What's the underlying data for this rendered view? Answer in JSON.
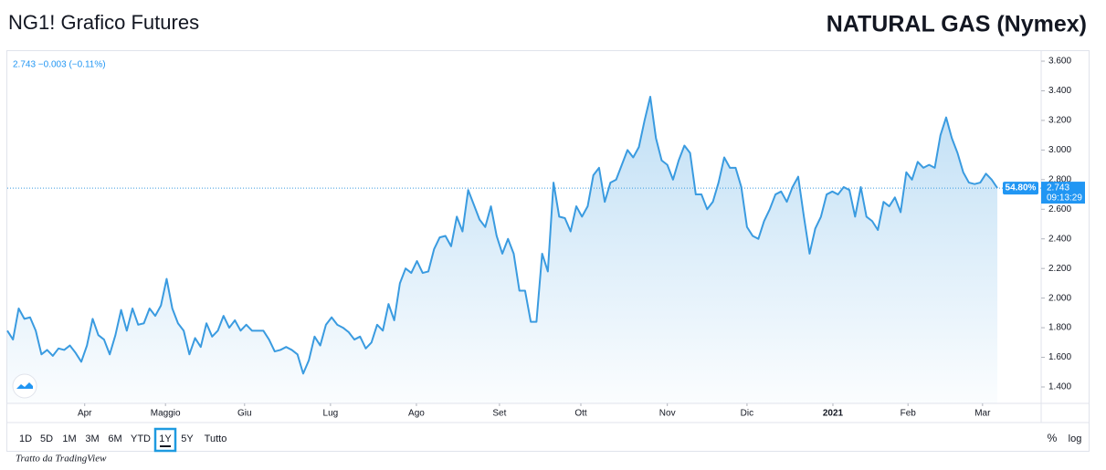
{
  "chart_data": {
    "type": "area",
    "title": "NG1! Grafico Futures",
    "subtitle": "NATURAL GAS (Nymex)",
    "legend_text": "2.743 −0.003 (−0.11%)",
    "color": "#3a9be0",
    "values": [
      1.78,
      1.72,
      1.93,
      1.86,
      1.87,
      1.78,
      1.62,
      1.65,
      1.61,
      1.66,
      1.65,
      1.68,
      1.63,
      1.57,
      1.68,
      1.86,
      1.75,
      1.72,
      1.62,
      1.75,
      1.92,
      1.78,
      1.93,
      1.82,
      1.83,
      1.93,
      1.88,
      1.95,
      2.13,
      1.93,
      1.83,
      1.78,
      1.62,
      1.73,
      1.67,
      1.83,
      1.74,
      1.78,
      1.88,
      1.8,
      1.85,
      1.78,
      1.82,
      1.78,
      1.78,
      1.78,
      1.72,
      1.64,
      1.65,
      1.67,
      1.65,
      1.62,
      1.49,
      1.58,
      1.74,
      1.68,
      1.82,
      1.87,
      1.82,
      1.8,
      1.77,
      1.72,
      1.74,
      1.66,
      1.7,
      1.82,
      1.78,
      1.96,
      1.85,
      2.1,
      2.2,
      2.17,
      2.25,
      2.17,
      2.18,
      2.33,
      2.41,
      2.42,
      2.35,
      2.55,
      2.45,
      2.73,
      2.63,
      2.53,
      2.48,
      2.62,
      2.42,
      2.3,
      2.4,
      2.3,
      2.05,
      2.05,
      1.84,
      1.84,
      2.3,
      2.18,
      2.78,
      2.55,
      2.54,
      2.45,
      2.62,
      2.55,
      2.62,
      2.83,
      2.88,
      2.65,
      2.78,
      2.8,
      2.9,
      3.0,
      2.95,
      3.02,
      3.2,
      3.36,
      3.08,
      2.93,
      2.9,
      2.8,
      2.93,
      3.03,
      2.98,
      2.7,
      2.7,
      2.6,
      2.65,
      2.78,
      2.95,
      2.88,
      2.88,
      2.75,
      2.48,
      2.42,
      2.4,
      2.52,
      2.6,
      2.7,
      2.72,
      2.65,
      2.75,
      2.82,
      2.55,
      2.3,
      2.47,
      2.55,
      2.7,
      2.72,
      2.7,
      2.75,
      2.73,
      2.55,
      2.75,
      2.55,
      2.52,
      2.46,
      2.65,
      2.62,
      2.68,
      2.58,
      2.85,
      2.8,
      2.92,
      2.88,
      2.9,
      2.88,
      3.1,
      3.22,
      3.08,
      2.98,
      2.85,
      2.78,
      2.77,
      2.78,
      2.84,
      2.8,
      2.743
    ],
    "xlim": [
      0,
      181.7
    ],
    "xticks": [
      {
        "value": 13.6,
        "label": "Apr"
      },
      {
        "value": 27.8,
        "label": "Maggio"
      },
      {
        "value": 41.7,
        "label": "Giu"
      },
      {
        "value": 56.8,
        "label": "Lug"
      },
      {
        "value": 71.9,
        "label": "Ago"
      },
      {
        "value": 86.5,
        "label": "Set"
      },
      {
        "value": 100.8,
        "label": "Ott"
      },
      {
        "value": 116.0,
        "label": "Nov"
      },
      {
        "value": 130.0,
        "label": "Dic"
      },
      {
        "value": 145.1,
        "label": "2021"
      },
      {
        "value": 158.3,
        "label": "Feb"
      },
      {
        "value": 171.4,
        "label": "Mar"
      }
    ],
    "ylim": [
      1.289,
      3.668
    ],
    "yticks": [
      {
        "value": 1.4,
        "label": "1.400"
      },
      {
        "value": 1.6,
        "label": "1.600"
      },
      {
        "value": 1.8,
        "label": "1.800"
      },
      {
        "value": 2.0,
        "label": "2.000"
      },
      {
        "value": 2.2,
        "label": "2.200"
      },
      {
        "value": 2.4,
        "label": "2.400"
      },
      {
        "value": 2.6,
        "label": "2.600"
      },
      {
        "value": 2.8,
        "label": "2.800"
      },
      {
        "value": 3.0,
        "label": "3.000"
      },
      {
        "value": 3.2,
        "label": "3.200"
      },
      {
        "value": 3.4,
        "label": "3.400"
      },
      {
        "value": 3.6,
        "label": "3.600"
      }
    ],
    "price_tag": {
      "price": "2.743",
      "countdown": "09:13:29",
      "change": "54.80%"
    }
  },
  "toolbar": {
    "ranges": [
      "1D",
      "5D",
      "1M",
      "3M",
      "6M",
      "YTD",
      "1Y",
      "5Y",
      "Tutto"
    ],
    "selected": 6,
    "percent": "%",
    "log": "log"
  },
  "footer": "Tratto da TradingView"
}
